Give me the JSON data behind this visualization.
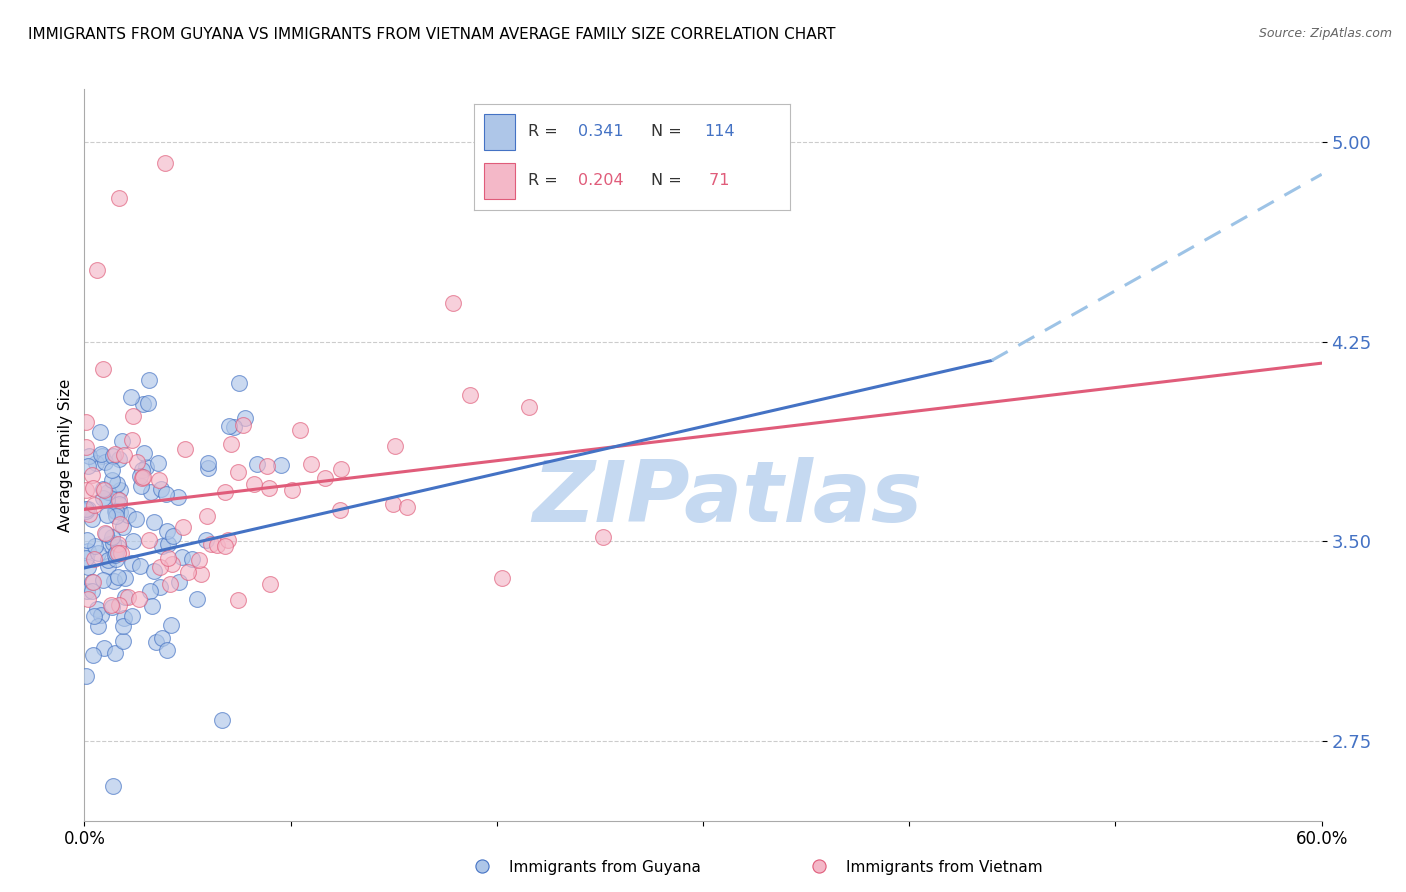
{
  "title": "IMMIGRANTS FROM GUYANA VS IMMIGRANTS FROM VIETNAM AVERAGE FAMILY SIZE CORRELATION CHART",
  "source": "Source: ZipAtlas.com",
  "ylabel": "Average Family Size",
  "xlim": [
    0.0,
    0.6
  ],
  "ylim": [
    2.45,
    5.2
  ],
  "yticks": [
    2.75,
    3.5,
    4.25,
    5.0
  ],
  "ytick_labels": [
    "2.75",
    "3.50",
    "4.25",
    "5.00"
  ],
  "ytick_color": "#4472c4",
  "background_color": "#ffffff",
  "grid_color": "#cccccc",
  "legend_R_guyana": "0.341",
  "legend_N_guyana": "114",
  "legend_R_vietnam": "0.204",
  "legend_N_vietnam": " 71",
  "guyana_color": "#aec6e8",
  "guyana_edge_color": "#4472c4",
  "vietnam_color": "#f4b8c8",
  "vietnam_edge_color": "#e05c7a",
  "trend_guyana_solid_color": "#4472c4",
  "trend_guyana_dashed_color": "#9dc3e6",
  "trend_vietnam_color": "#e05c7a",
  "watermark_text": "ZIPatlas",
  "watermark_color": "#c5d9f1",
  "trend_guyana_x0": 0.0,
  "trend_guyana_y0": 3.4,
  "trend_guyana_x1": 0.44,
  "trend_guyana_y1": 4.18,
  "trend_guyana_x2": 0.6,
  "trend_guyana_y2": 4.88,
  "trend_vietnam_x0": 0.0,
  "trend_vietnam_y0": 3.62,
  "trend_vietnam_x1": 0.6,
  "trend_vietnam_y1": 4.17
}
